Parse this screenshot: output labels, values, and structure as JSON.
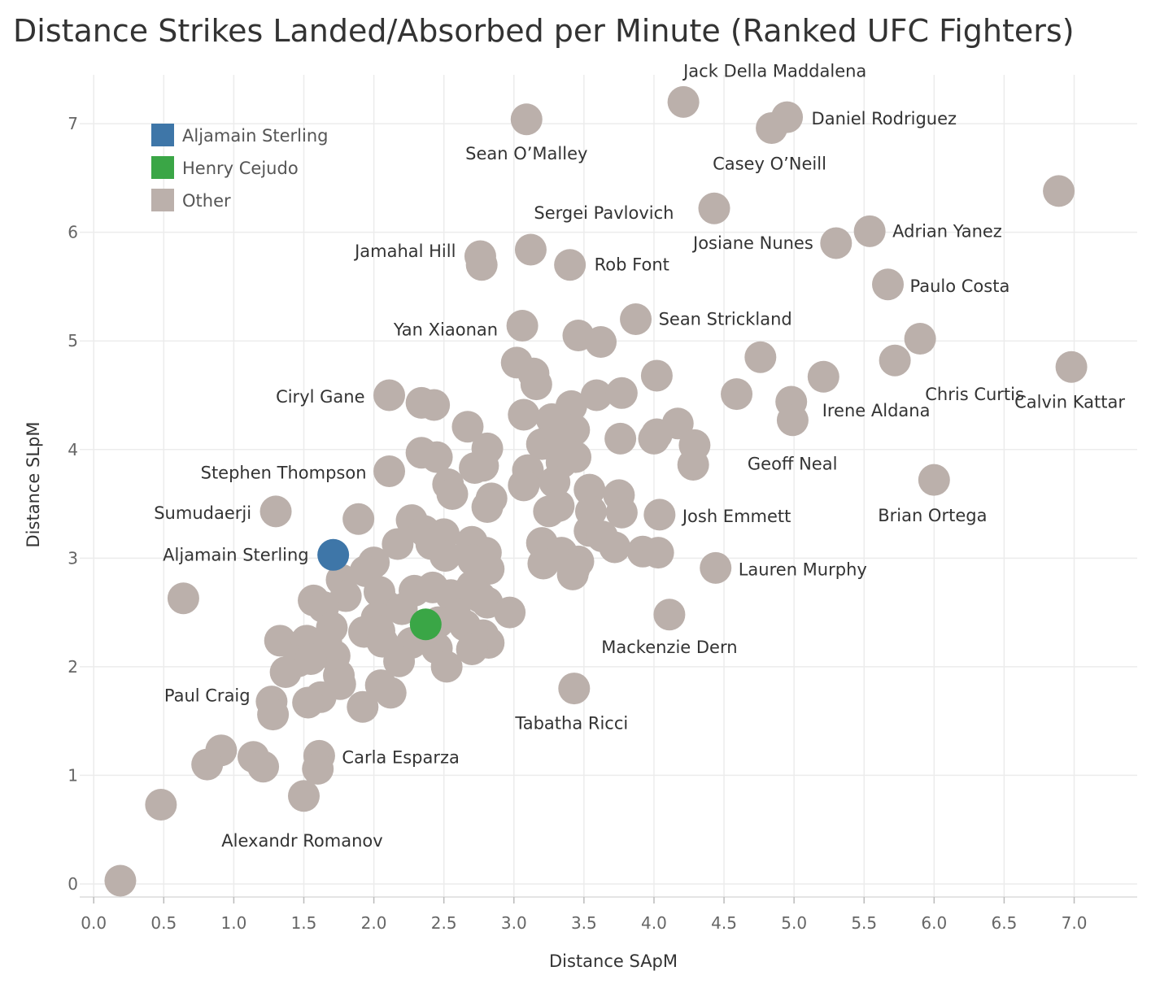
{
  "chart_data": {
    "type": "scatter",
    "title": "Distance Strikes Landed/Absorbed per Minute (Ranked UFC Fighters)",
    "xlabel": "Distance SApM",
    "ylabel": "Distance SLpM",
    "xlim": [
      -0.1,
      7.45
    ],
    "ylim": [
      -0.12,
      7.45
    ],
    "xticks": [
      "0.0",
      "0.5",
      "1.0",
      "1.5",
      "2.0",
      "2.5",
      "3.0",
      "3.5",
      "4.0",
      "4.5",
      "5.0",
      "5.5",
      "6.0",
      "6.5",
      "7.0"
    ],
    "yticks": [
      "0",
      "1",
      "2",
      "3",
      "4",
      "5",
      "6",
      "7"
    ],
    "grid": true,
    "legend_position": "top-left",
    "legend": [
      {
        "label": "Aljamain Sterling",
        "color": "#3e76a8"
      },
      {
        "label": "Henry Cejudo",
        "color": "#3aa646"
      },
      {
        "label": "Other",
        "color": "#bbb0ab"
      }
    ],
    "series": [
      {
        "name": "Aljamain Sterling",
        "color": "#3e76a8",
        "points": [
          {
            "x": 1.71,
            "y": 3.03,
            "label": "Aljamain Sterling"
          }
        ]
      },
      {
        "name": "Henry Cejudo",
        "color": "#3aa646",
        "points": [
          {
            "x": 2.37,
            "y": 2.39
          }
        ]
      },
      {
        "name": "Other",
        "color": "#bbb0ab",
        "points": [
          {
            "x": 4.21,
            "y": 7.2,
            "label": "Jack Della Maddalena"
          },
          {
            "x": 4.95,
            "y": 7.06,
            "label": "Daniel Rodriguez"
          },
          {
            "x": 4.84,
            "y": 6.96
          },
          {
            "x": 3.09,
            "y": 7.04,
            "label": "Sean O'Malley"
          },
          {
            "x": 4.43,
            "y": 6.22,
            "label": "Casey O'Neill"
          },
          {
            "x": 6.89,
            "y": 6.38
          },
          {
            "x": 3.12,
            "y": 5.84,
            "label": "Sergei Pavlovich"
          },
          {
            "x": 2.76,
            "y": 5.78,
            "label": "Jamahal Hill"
          },
          {
            "x": 2.77,
            "y": 5.7
          },
          {
            "x": 3.4,
            "y": 5.7,
            "label": "Rob Font"
          },
          {
            "x": 5.3,
            "y": 5.9,
            "label": "Josiane Nunes"
          },
          {
            "x": 5.54,
            "y": 6.01,
            "label": "Adrian Yanez"
          },
          {
            "x": 5.67,
            "y": 5.52,
            "label": "Paulo Costa"
          },
          {
            "x": 3.87,
            "y": 5.2,
            "label": "Sean Strickland"
          },
          {
            "x": 3.06,
            "y": 5.14,
            "label": "Yan Xiaonan"
          },
          {
            "x": 3.46,
            "y": 5.05
          },
          {
            "x": 3.62,
            "y": 4.99
          },
          {
            "x": 5.9,
            "y": 5.02
          },
          {
            "x": 5.72,
            "y": 4.82,
            "label": "Chris Curtis"
          },
          {
            "x": 6.98,
            "y": 4.76,
            "label": "Calvin Kattar"
          },
          {
            "x": 4.76,
            "y": 4.85
          },
          {
            "x": 3.02,
            "y": 4.8
          },
          {
            "x": 3.14,
            "y": 4.7
          },
          {
            "x": 3.16,
            "y": 4.6
          },
          {
            "x": 4.02,
            "y": 4.68
          },
          {
            "x": 4.59,
            "y": 4.51
          },
          {
            "x": 5.21,
            "y": 4.67
          },
          {
            "x": 4.98,
            "y": 4.44,
            "label": "Irene Aldana"
          },
          {
            "x": 4.99,
            "y": 4.27
          },
          {
            "x": 2.11,
            "y": 4.5,
            "label": "Ciryl Gane"
          },
          {
            "x": 2.34,
            "y": 4.43
          },
          {
            "x": 2.43,
            "y": 4.41
          },
          {
            "x": 3.59,
            "y": 4.5
          },
          {
            "x": 3.77,
            "y": 4.52
          },
          {
            "x": 3.07,
            "y": 4.32
          },
          {
            "x": 3.27,
            "y": 4.28
          },
          {
            "x": 3.41,
            "y": 4.4
          },
          {
            "x": 2.67,
            "y": 4.21
          },
          {
            "x": 3.43,
            "y": 4.18
          },
          {
            "x": 3.2,
            "y": 4.05
          },
          {
            "x": 3.33,
            "y": 4.1
          },
          {
            "x": 4.17,
            "y": 4.24
          },
          {
            "x": 4.02,
            "y": 4.14
          },
          {
            "x": 4.0,
            "y": 4.1
          },
          {
            "x": 3.76,
            "y": 4.1
          },
          {
            "x": 4.29,
            "y": 4.04
          },
          {
            "x": 4.28,
            "y": 3.86,
            "label": "Geoff Neal"
          },
          {
            "x": 2.81,
            "y": 4.01
          },
          {
            "x": 2.34,
            "y": 3.97
          },
          {
            "x": 2.45,
            "y": 3.93
          },
          {
            "x": 3.44,
            "y": 3.93
          },
          {
            "x": 3.34,
            "y": 3.88
          },
          {
            "x": 2.72,
            "y": 3.83
          },
          {
            "x": 2.78,
            "y": 3.85
          },
          {
            "x": 3.1,
            "y": 3.81
          },
          {
            "x": 3.29,
            "y": 3.7
          },
          {
            "x": 3.07,
            "y": 3.67
          },
          {
            "x": 3.54,
            "y": 3.63
          },
          {
            "x": 3.75,
            "y": 3.58
          },
          {
            "x": 3.77,
            "y": 3.42
          },
          {
            "x": 2.11,
            "y": 3.8,
            "label": "Stephen Thompson"
          },
          {
            "x": 2.53,
            "y": 3.68
          },
          {
            "x": 2.56,
            "y": 3.59
          },
          {
            "x": 2.84,
            "y": 3.55
          },
          {
            "x": 2.81,
            "y": 3.47
          },
          {
            "x": 3.32,
            "y": 3.48
          },
          {
            "x": 3.25,
            "y": 3.43
          },
          {
            "x": 3.55,
            "y": 3.43
          },
          {
            "x": 1.3,
            "y": 3.43,
            "label": "Sumudaerji"
          },
          {
            "x": 1.89,
            "y": 3.36
          },
          {
            "x": 2.27,
            "y": 3.35
          },
          {
            "x": 4.04,
            "y": 3.4,
            "label": "Josh Emmett"
          },
          {
            "x": 6.0,
            "y": 3.72,
            "label": "Brian Ortega"
          },
          {
            "x": 3.54,
            "y": 3.25
          },
          {
            "x": 3.63,
            "y": 3.2
          },
          {
            "x": 3.72,
            "y": 3.1
          },
          {
            "x": 2.36,
            "y": 3.25
          },
          {
            "x": 2.5,
            "y": 3.22
          },
          {
            "x": 2.17,
            "y": 3.13
          },
          {
            "x": 2.41,
            "y": 3.13
          },
          {
            "x": 2.7,
            "y": 3.15
          },
          {
            "x": 2.8,
            "y": 3.05
          },
          {
            "x": 3.2,
            "y": 3.14
          },
          {
            "x": 3.34,
            "y": 3.05
          },
          {
            "x": 3.92,
            "y": 3.06
          },
          {
            "x": 4.03,
            "y": 3.05
          },
          {
            "x": 2.51,
            "y": 3.02
          },
          {
            "x": 2.71,
            "y": 2.98
          },
          {
            "x": 2.0,
            "y": 2.96
          },
          {
            "x": 3.46,
            "y": 2.97
          },
          {
            "x": 3.21,
            "y": 2.95
          },
          {
            "x": 3.43,
            "y": 2.9
          },
          {
            "x": 4.44,
            "y": 2.91,
            "label": "Lauren Murphy"
          },
          {
            "x": 2.82,
            "y": 2.9
          },
          {
            "x": 3.42,
            "y": 2.85
          },
          {
            "x": 1.94,
            "y": 2.88
          },
          {
            "x": 1.77,
            "y": 2.8
          },
          {
            "x": 2.7,
            "y": 2.74
          },
          {
            "x": 0.64,
            "y": 2.63
          },
          {
            "x": 2.04,
            "y": 2.69
          },
          {
            "x": 2.29,
            "y": 2.7
          },
          {
            "x": 2.42,
            "y": 2.73
          },
          {
            "x": 2.55,
            "y": 2.66
          },
          {
            "x": 1.8,
            "y": 2.65
          },
          {
            "x": 1.57,
            "y": 2.61
          },
          {
            "x": 2.76,
            "y": 2.64
          },
          {
            "x": 2.81,
            "y": 2.59
          },
          {
            "x": 1.64,
            "y": 2.55
          },
          {
            "x": 2.08,
            "y": 2.57
          },
          {
            "x": 2.2,
            "y": 2.53
          },
          {
            "x": 2.58,
            "y": 2.49
          },
          {
            "x": 2.97,
            "y": 2.5
          },
          {
            "x": 4.11,
            "y": 2.48,
            "label": "Mackenzie Dern"
          },
          {
            "x": 2.02,
            "y": 2.45
          },
          {
            "x": 2.46,
            "y": 2.41
          },
          {
            "x": 2.65,
            "y": 2.38
          },
          {
            "x": 1.7,
            "y": 2.36
          },
          {
            "x": 2.04,
            "y": 2.33
          },
          {
            "x": 1.93,
            "y": 2.32
          },
          {
            "x": 2.78,
            "y": 2.29
          },
          {
            "x": 1.33,
            "y": 2.24
          },
          {
            "x": 1.52,
            "y": 2.24
          },
          {
            "x": 1.66,
            "y": 2.23
          },
          {
            "x": 2.06,
            "y": 2.23
          },
          {
            "x": 2.27,
            "y": 2.22
          },
          {
            "x": 2.82,
            "y": 2.22
          },
          {
            "x": 2.45,
            "y": 2.17
          },
          {
            "x": 2.7,
            "y": 2.16
          },
          {
            "x": 1.72,
            "y": 2.1
          },
          {
            "x": 1.46,
            "y": 2.05
          },
          {
            "x": 1.55,
            "y": 2.07
          },
          {
            "x": 2.18,
            "y": 2.05
          },
          {
            "x": 2.52,
            "y": 2.0
          },
          {
            "x": 1.37,
            "y": 1.95
          },
          {
            "x": 1.75,
            "y": 1.92
          },
          {
            "x": 1.76,
            "y": 1.84
          },
          {
            "x": 2.05,
            "y": 1.83
          },
          {
            "x": 2.12,
            "y": 1.76
          },
          {
            "x": 3.43,
            "y": 1.8,
            "label": "Tabatha Ricci"
          },
          {
            "x": 1.62,
            "y": 1.72
          },
          {
            "x": 1.53,
            "y": 1.67
          },
          {
            "x": 1.27,
            "y": 1.68
          },
          {
            "x": 1.28,
            "y": 1.56,
            "label": "Paul Craig"
          },
          {
            "x": 1.92,
            "y": 1.63
          },
          {
            "x": 0.91,
            "y": 1.23
          },
          {
            "x": 1.14,
            "y": 1.17
          },
          {
            "x": 1.61,
            "y": 1.18,
            "label": "Carla Esparza"
          },
          {
            "x": 0.81,
            "y": 1.1
          },
          {
            "x": 1.21,
            "y": 1.08
          },
          {
            "x": 1.6,
            "y": 1.06
          },
          {
            "x": 1.5,
            "y": 0.81,
            "label": "Alexandr Romanov"
          },
          {
            "x": 0.48,
            "y": 0.73
          },
          {
            "x": 0.19,
            "y": 0.03
          }
        ]
      }
    ]
  }
}
